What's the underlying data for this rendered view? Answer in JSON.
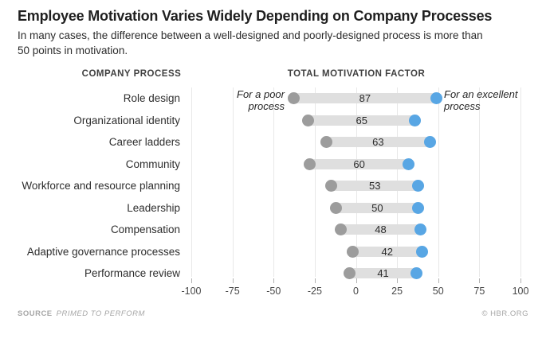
{
  "header": {
    "title": "Employee Motivation Varies Widely Depending on Company Processes",
    "subtitle": "In many cases, the difference between a well-designed and poorly-designed process is more than 50 points in motivation."
  },
  "chart": {
    "left_header": "COMPANY PROCESS",
    "right_header": "TOTAL MOTIVATION FACTOR",
    "annotation_poor": "For a poor\nprocess",
    "annotation_excellent": "For an excellent\nprocess"
  },
  "chart_data": {
    "type": "dumbbell",
    "title": "Employee Motivation Varies Widely Depending on Company Processes",
    "xlabel": "Total motivation factor",
    "categories": [
      "Role design",
      "Organizational identity",
      "Career ladders",
      "Community",
      "Workforce and resource planning",
      "Leadership",
      "Compensation",
      "Adaptive governance processes",
      "Performance review"
    ],
    "series": [
      {
        "name": "For a poor process",
        "color": "#9c9c9c",
        "values": [
          -38,
          -29,
          -18,
          -28,
          -15,
          -12,
          -9,
          -2,
          -4
        ]
      },
      {
        "name": "For an excellent process",
        "color": "#58a6e4",
        "values": [
          49,
          36,
          45,
          32,
          38,
          38,
          39,
          40,
          37
        ]
      }
    ],
    "bar_labels": [
      87,
      65,
      63,
      60,
      53,
      50,
      48,
      42,
      41
    ],
    "xlim": [
      -100,
      100
    ],
    "xticks": [
      -100,
      -75,
      -50,
      -25,
      0,
      25,
      50,
      75,
      100
    ],
    "grid": true,
    "legend_position": "inline-annotations",
    "bar_color": "#dfdfdf"
  },
  "footer": {
    "source_label": "SOURCE",
    "source_value": "PRIMED TO PERFORM",
    "credit": "© HBR.ORG"
  }
}
